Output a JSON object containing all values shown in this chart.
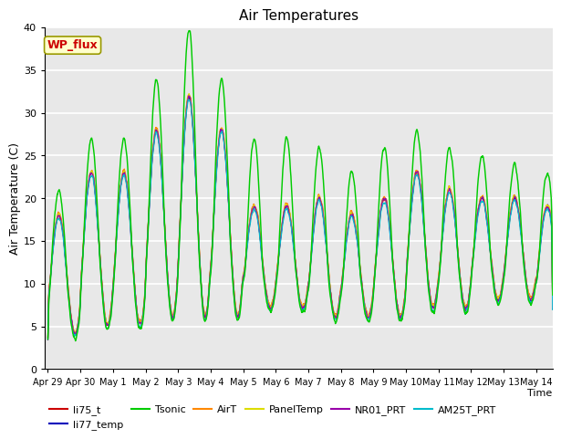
{
  "title": "Air Temperatures",
  "ylabel": "Air Temperature (C)",
  "xlabel": "Time",
  "ylim": [
    0,
    40
  ],
  "yticks": [
    0,
    5,
    10,
    15,
    20,
    25,
    30,
    35,
    40
  ],
  "x_tick_labels": [
    "Apr 29",
    "Apr 30",
    "May 1",
    "May 2",
    "May 3",
    "May 4",
    "May 5",
    "May 6",
    "May 7",
    "May 8",
    "May 9",
    "May 10",
    "May 11",
    "May 12",
    "May 13",
    "May 14"
  ],
  "legend_entries": [
    {
      "label": "li75_t",
      "color": "#cc0000"
    },
    {
      "label": "li77_temp",
      "color": "#0000bb"
    },
    {
      "label": "Tsonic",
      "color": "#00cc00"
    },
    {
      "label": "AirT",
      "color": "#ff8800"
    },
    {
      "label": "PanelTemp",
      "color": "#dddd00"
    },
    {
      "label": "NR01_PRT",
      "color": "#9900aa"
    },
    {
      "label": "AM25T_PRT",
      "color": "#00bbcc"
    }
  ],
  "annotation_text": "WP_flux",
  "annotation_color": "#cc0000",
  "annotation_bg": "#ffffcc",
  "bg_color": "#e8e8e8",
  "grid_color": "#ffffff",
  "day_means": [
    11,
    14,
    14,
    17,
    19,
    17,
    13,
    13,
    13,
    12,
    13,
    15,
    14,
    14,
    14,
    13
  ],
  "day_amps": [
    7,
    9,
    9,
    11,
    13,
    11,
    6,
    6,
    7,
    6,
    7,
    8,
    7,
    6,
    6,
    6
  ],
  "tsonic_day_extra": [
    3,
    4,
    4,
    6,
    8,
    6,
    8,
    8,
    6,
    5,
    6,
    5,
    5,
    5,
    4,
    4
  ]
}
